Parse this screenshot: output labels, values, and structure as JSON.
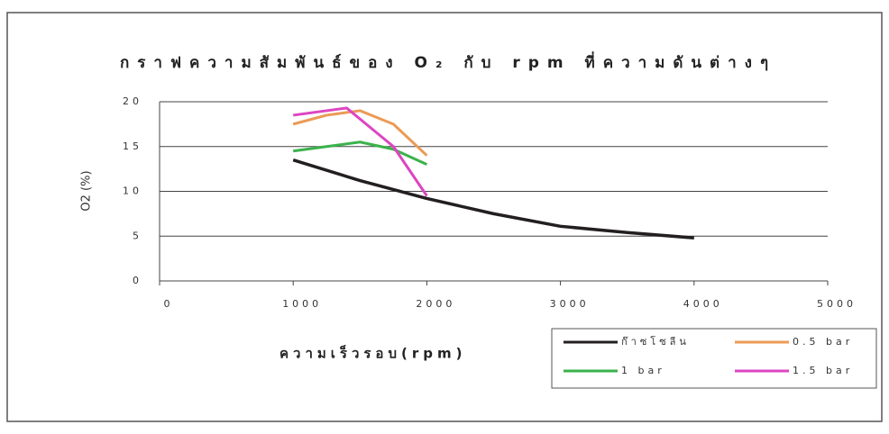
{
  "chart_data": {
    "type": "line",
    "title": "กราฟความสัมพันธ์ของ O₂ กับ rpm ที่ความดันต่างๆ",
    "x_label": "ความเร็วรอบ(rpm)",
    "y_label": "O2 (%)",
    "xlim": [
      0,
      5000
    ],
    "xticks": [
      0,
      1000,
      2000,
      3000,
      4000,
      5000
    ],
    "ylim": [
      0,
      20
    ],
    "yticks": [
      0,
      5,
      10,
      15,
      20
    ],
    "grid": true,
    "legend": "bottom-right",
    "series": [
      {
        "name": "ก๊าซโซลีน",
        "color": "#231f20",
        "x": [
          1000,
          1500,
          2000,
          2500,
          3000,
          3500,
          4000
        ],
        "values": [
          13.5,
          11.2,
          9.2,
          7.5,
          6.1,
          5.4,
          4.8
        ]
      },
      {
        "name": "0.5 bar",
        "color": "#eb9a55",
        "x": [
          1000,
          1250,
          1500,
          1750,
          2000
        ],
        "values": [
          17.5,
          18.5,
          19,
          17.5,
          14
        ]
      },
      {
        "name": "1 bar",
        "color": "#3bb24c",
        "x": [
          1000,
          1250,
          1500,
          1750,
          2000
        ],
        "values": [
          14.5,
          15,
          15.5,
          14.7,
          13
        ]
      },
      {
        "name": "1.5 bar",
        "color": "#dd45c2",
        "x": [
          1000,
          1250,
          1400,
          1750,
          2000
        ],
        "values": [
          18.5,
          19,
          19.3,
          15,
          9.5
        ]
      }
    ]
  }
}
